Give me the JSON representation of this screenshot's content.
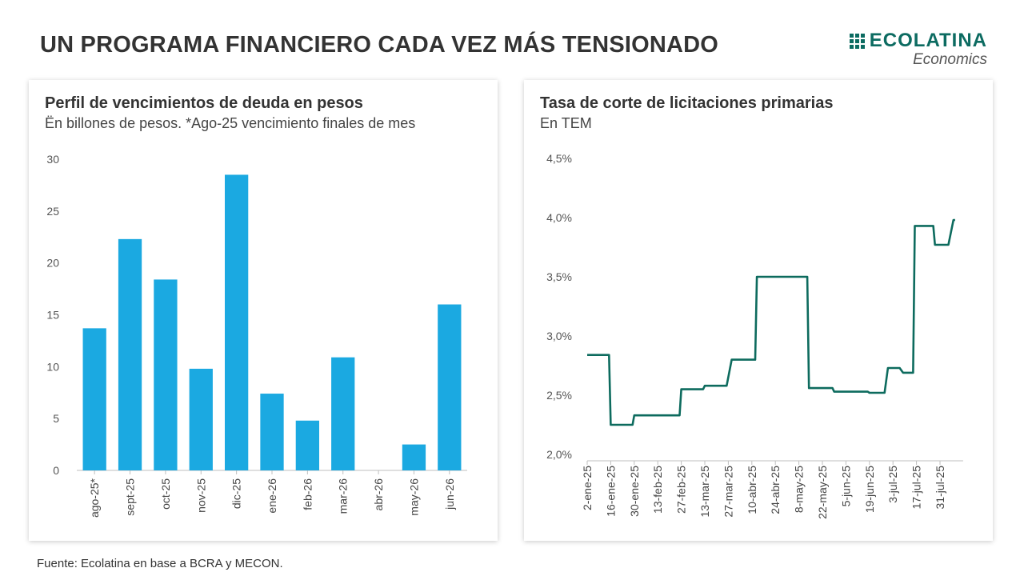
{
  "header": {
    "title": "UN PROGRAMA FINANCIERO CADA VEZ MÁS TENSIONADO",
    "logo_name": "ECOLATINA",
    "logo_sub": "Economics",
    "brand_color": "#0c6b61",
    "logo_icon": "dot-grid-icon"
  },
  "footer": {
    "source": "Fuente: Ecolatina en base a BCRA y MECON."
  },
  "chart_data": [
    {
      "type": "bar",
      "title": "Perfil de vencimientos de deuda en pesos",
      "subtitle": "Ën billones de pesos. *Ago-25 vencimiento finales de mes",
      "categories": [
        "ago-25*",
        "sept-25",
        "oct-25",
        "nov-25",
        "dic-25",
        "ene-26",
        "feb-26",
        "mar-26",
        "abr-26",
        "may-26",
        "jun-26"
      ],
      "values": [
        13.7,
        22.3,
        18.4,
        9.8,
        28.5,
        7.4,
        4.8,
        10.9,
        0,
        2.5,
        16.0
      ],
      "yticks": [
        "0",
        "5",
        "10",
        "15",
        "20",
        "25",
        "30"
      ],
      "ylim": [
        0,
        30
      ],
      "color": "#1ba9e1",
      "grid": false
    },
    {
      "type": "line",
      "title": "Tasa de corte de licitaciones primarias",
      "subtitle": "En TEM",
      "x_ticks": [
        "2-ene-25",
        "16-ene-25",
        "30-ene-25",
        "13-feb-25",
        "27-feb-25",
        "13-mar-25",
        "27-mar-25",
        "10-abr-25",
        "24-abr-25",
        "8-may-25",
        "22-may-25",
        "5-jun-25",
        "19-jun-25",
        "3-jul-25",
        "17-jul-25",
        "31-jul-25"
      ],
      "yticks": [
        "2,0%",
        "2,5%",
        "3,0%",
        "3,5%",
        "4,0%",
        "4,5%"
      ],
      "ylim": [
        2.0,
        4.5
      ],
      "color": "#0d6b5e",
      "grid": false,
      "points": [
        [
          "2025-01-02",
          2.84
        ],
        [
          "2025-01-15",
          2.84
        ],
        [
          "2025-01-16",
          2.25
        ],
        [
          "2025-01-29",
          2.25
        ],
        [
          "2025-01-30",
          2.33
        ],
        [
          "2025-02-26",
          2.33
        ],
        [
          "2025-02-27",
          2.55
        ],
        [
          "2025-03-12",
          2.55
        ],
        [
          "2025-03-13",
          2.58
        ],
        [
          "2025-03-26",
          2.58
        ],
        [
          "2025-03-29",
          2.8
        ],
        [
          "2025-04-12",
          2.8
        ],
        [
          "2025-04-13",
          3.5
        ],
        [
          "2025-05-13",
          3.5
        ],
        [
          "2025-05-14",
          2.56
        ],
        [
          "2025-05-28",
          2.56
        ],
        [
          "2025-05-29",
          2.53
        ],
        [
          "2025-06-18",
          2.53
        ],
        [
          "2025-06-19",
          2.52
        ],
        [
          "2025-06-28",
          2.52
        ],
        [
          "2025-06-30",
          2.73
        ],
        [
          "2025-07-07",
          2.73
        ],
        [
          "2025-07-09",
          2.69
        ],
        [
          "2025-07-15",
          2.69
        ],
        [
          "2025-07-16",
          3.93
        ],
        [
          "2025-07-27",
          3.93
        ],
        [
          "2025-07-28",
          3.77
        ],
        [
          "2025-08-05",
          3.77
        ],
        [
          "2025-08-08",
          3.98
        ],
        [
          "2025-08-09",
          3.98
        ]
      ]
    }
  ]
}
